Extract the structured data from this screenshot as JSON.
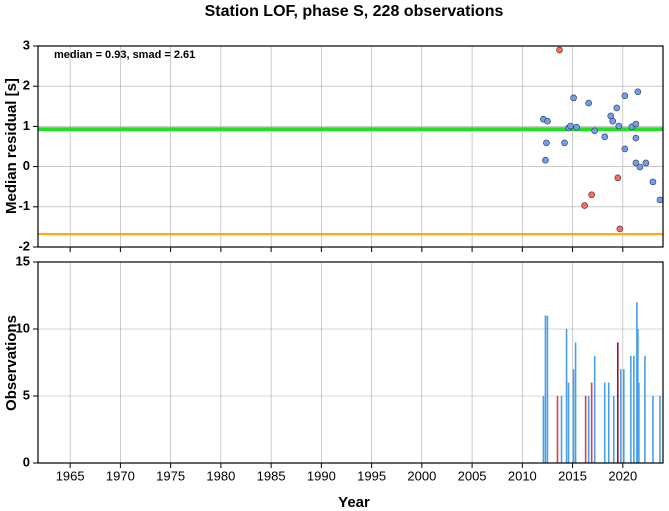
{
  "chart_data": [
    {
      "type": "scatter",
      "title": "Station LOF, phase S, 228 observations",
      "annotation": "median = 0.93, smad = 2.61",
      "ylabel": "Median residual [s]",
      "xlim": [
        1961.8,
        2024
      ],
      "ylim": [
        -2,
        3
      ],
      "yticks": [
        -2,
        -1,
        0,
        1,
        2,
        3
      ],
      "xticks": [
        1965,
        1970,
        1975,
        1980,
        1985,
        1990,
        1995,
        2000,
        2005,
        2010,
        2015,
        2020
      ],
      "grid": true,
      "hlines": [
        {
          "value": 0.93,
          "color": "#22e022"
        },
        {
          "value": -1.68,
          "color": "#ffa500"
        }
      ],
      "series": [
        {
          "color": "#6f9ff0",
          "x": [
            2012.1,
            2012.5,
            2012.4,
            2012.3,
            2014.2,
            2014.6,
            2014.8,
            2015.1,
            2015.4,
            2016.6,
            2017.2,
            2018.2,
            2018.8,
            2019.0,
            2019.4,
            2019.6,
            2020.2,
            2020.2,
            2020.9,
            2021.3,
            2021.5,
            2021.3,
            2021.3,
            2021.7,
            2022.3,
            2023.0,
            2023.7
          ],
          "values": [
            1.18,
            1.13,
            0.59,
            0.16,
            0.59,
            0.96,
            1.01,
            1.71,
            0.98,
            1.58,
            0.89,
            0.74,
            1.26,
            1.13,
            1.46,
            1.01,
            1.76,
            0.44,
            0.99,
            1.06,
            1.86,
            0.71,
            0.09,
            -0.01,
            0.09,
            -0.38,
            -0.83
          ]
        },
        {
          "color": "#ff6a5a",
          "x": [
            2013.7,
            2016.2,
            2016.9,
            2019.5,
            2019.7
          ],
          "values": [
            2.9,
            -0.97,
            -0.7,
            -0.28,
            -1.55
          ]
        }
      ]
    },
    {
      "type": "bar",
      "ylabel": "Observations",
      "xlabel": "Year",
      "xlim": [
        1961.8,
        2024
      ],
      "ylim": [
        0,
        15
      ],
      "yticks": [
        0,
        5,
        10,
        15
      ],
      "xticks": [
        1965,
        1970,
        1975,
        1980,
        1985,
        1990,
        1995,
        2000,
        2005,
        2010,
        2015,
        2020
      ],
      "grid": true,
      "series": [
        {
          "color": "#4aa0e8",
          "x": [
            2012.1,
            2012.3,
            2012.5,
            2013.9,
            2014.4,
            2014.6,
            2015.1,
            2015.3,
            2016.6,
            2017.2,
            2018.2,
            2018.6,
            2019.1,
            2019.8,
            2020.1,
            2020.8,
            2021.1,
            2021.4,
            2021.5,
            2021.6,
            2022.2,
            2023.0,
            2023.7
          ],
          "values": [
            5,
            11,
            11,
            5,
            10,
            6,
            7,
            9,
            5,
            8,
            6,
            6,
            5,
            7,
            7,
            8,
            8,
            12,
            10,
            6,
            8,
            5,
            5
          ]
        },
        {
          "color": "#e04040",
          "x": [
            2013.5,
            2016.3,
            2016.9
          ],
          "values": [
            5,
            5,
            6
          ]
        },
        {
          "color": "#a01020",
          "x": [
            2019.5
          ],
          "values": [
            9
          ]
        }
      ]
    }
  ]
}
